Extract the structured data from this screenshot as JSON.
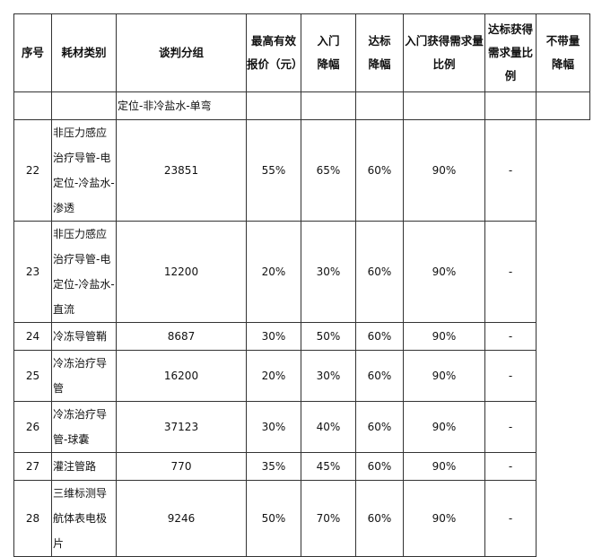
{
  "headers": {
    "seq": "序号",
    "category": "耗材类别",
    "group": "谈判分组",
    "max_price": "最高有效报价（元）",
    "entry_cut": "入门降幅",
    "target_cut": "达标降幅",
    "entry_ratio": "入门获得需求量比例",
    "target_ratio": "达标获得需求量比例",
    "no_volume_cut": "不带量降幅"
  },
  "continued_row": {
    "group": "定位-非冷盐水-单弯"
  },
  "rows": [
    {
      "seq": "22",
      "group": "非压力感应治疗导管-电定位-冷盐水-渗透",
      "max_price": "23851",
      "entry_cut": "55%",
      "target_cut": "65%",
      "entry_ratio": "60%",
      "target_ratio": "90%",
      "no_volume_cut": "-"
    },
    {
      "seq": "23",
      "group": "非压力感应治疗导管-电定位-冷盐水-直流",
      "max_price": "12200",
      "entry_cut": "20%",
      "target_cut": "30%",
      "entry_ratio": "60%",
      "target_ratio": "90%",
      "no_volume_cut": "-"
    },
    {
      "seq": "24",
      "group": "冷冻导管鞘",
      "max_price": "8687",
      "entry_cut": "30%",
      "target_cut": "50%",
      "entry_ratio": "60%",
      "target_ratio": "90%",
      "no_volume_cut": "-"
    },
    {
      "seq": "25",
      "group": "冷冻治疗导管",
      "max_price": "16200",
      "entry_cut": "20%",
      "target_cut": "30%",
      "entry_ratio": "60%",
      "target_ratio": "90%",
      "no_volume_cut": "-"
    },
    {
      "seq": "26",
      "group": "冷冻治疗导管-球囊",
      "max_price": "37123",
      "entry_cut": "30%",
      "target_cut": "40%",
      "entry_ratio": "60%",
      "target_ratio": "90%",
      "no_volume_cut": "-"
    },
    {
      "seq": "27",
      "group": "灌注管路",
      "max_price": "770",
      "entry_cut": "35%",
      "target_cut": "45%",
      "entry_ratio": "60%",
      "target_ratio": "90%",
      "no_volume_cut": "-"
    },
    {
      "seq": "28",
      "group": "三维标测导航体表电极片",
      "max_price": "9246",
      "entry_cut": "50%",
      "target_cut": "70%",
      "entry_ratio": "60%",
      "target_ratio": "90%",
      "no_volume_cut": "-"
    }
  ]
}
